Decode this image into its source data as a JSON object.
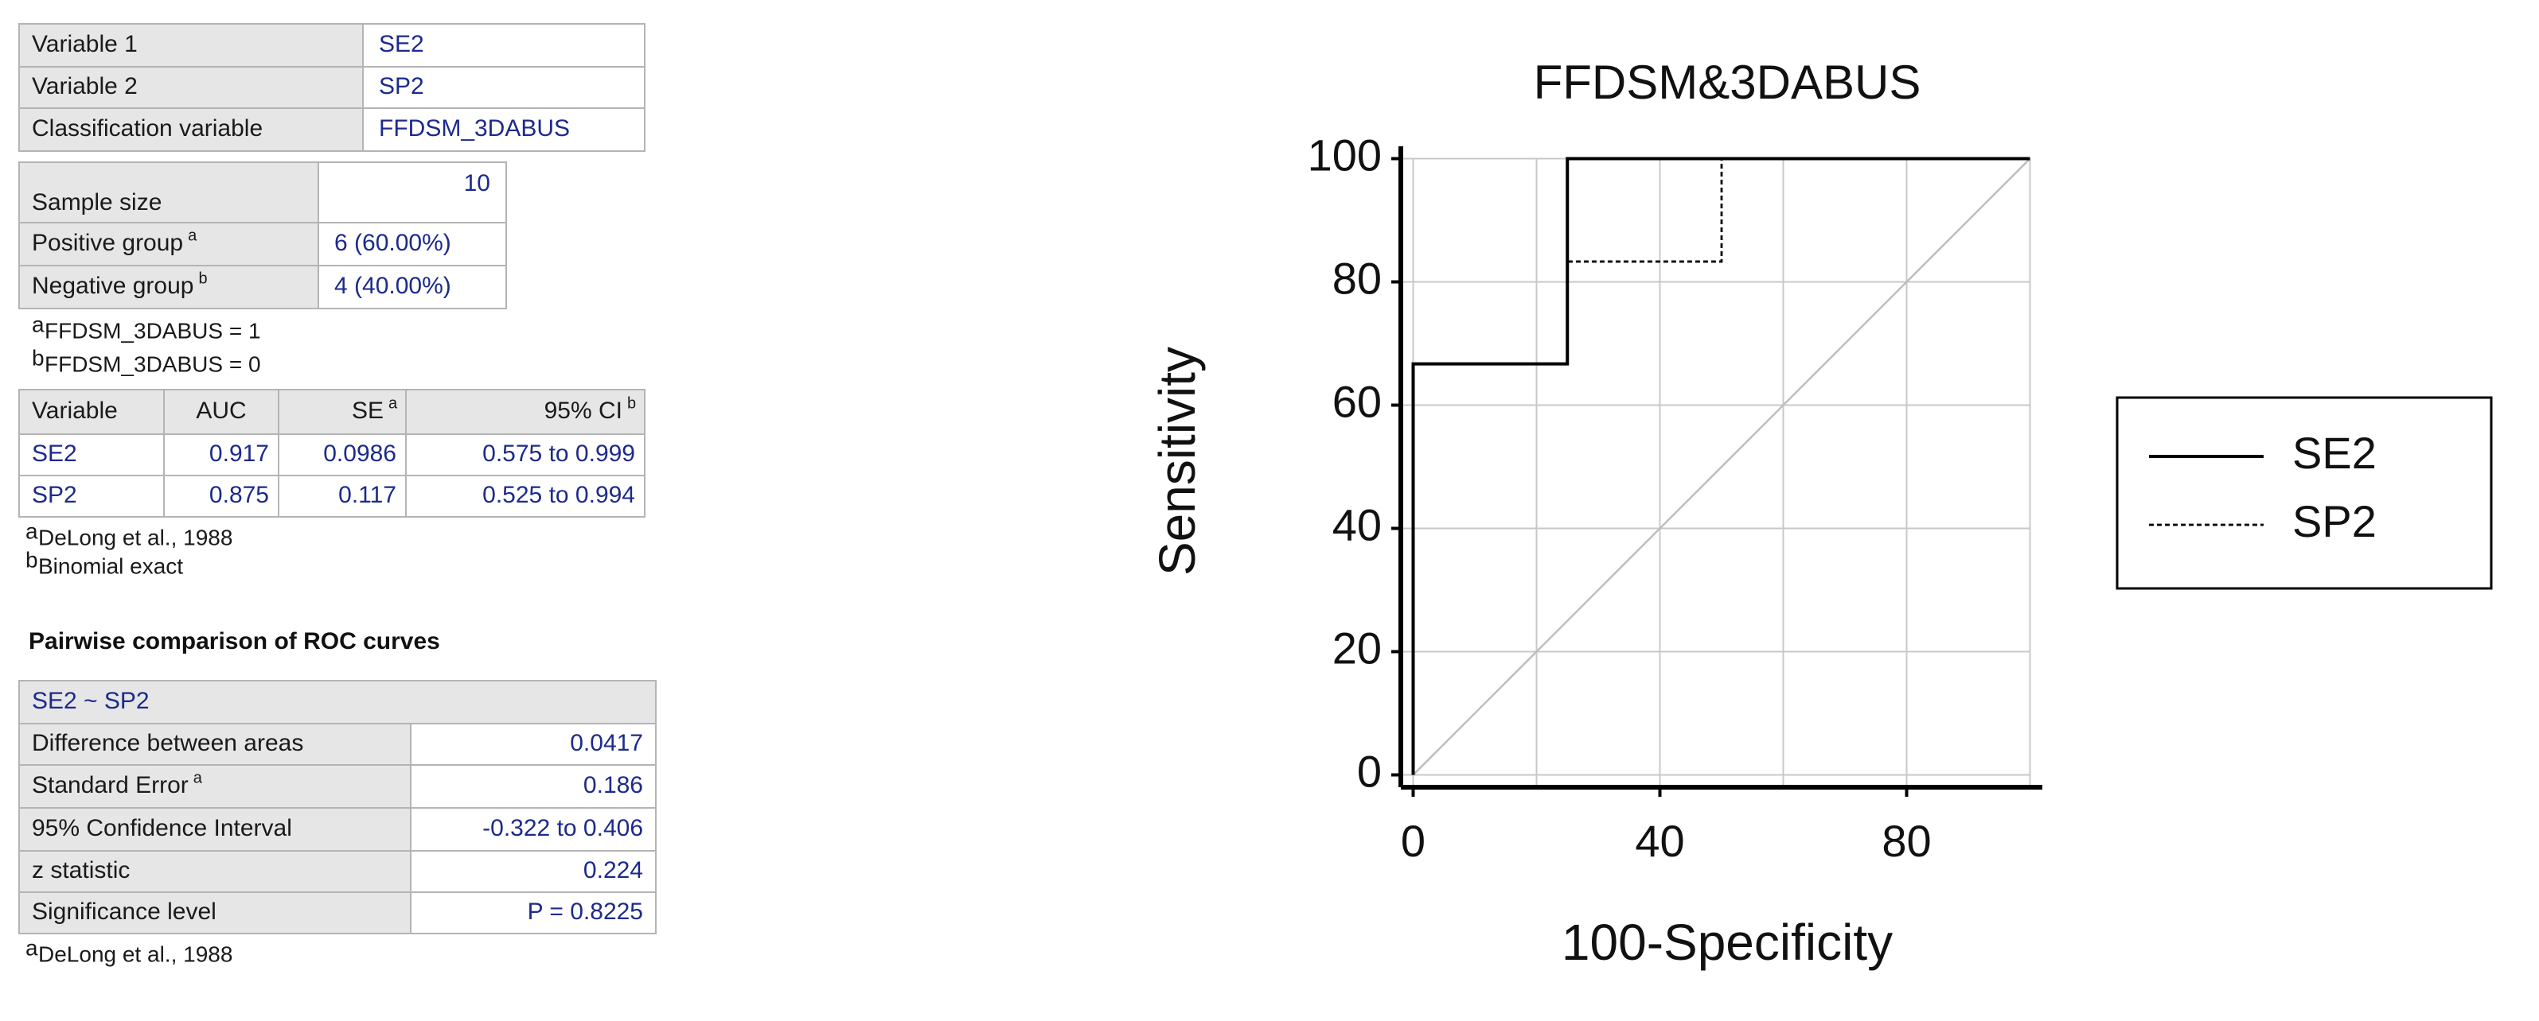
{
  "input_table": {
    "rows": [
      [
        "Variable 1",
        "SE2"
      ],
      [
        "Variable 2",
        "SP2"
      ],
      [
        "Classification variable",
        "FFDSM_3DABUS"
      ]
    ]
  },
  "sample_table": {
    "rows": [
      {
        "label": "Sample size",
        "value": "10"
      },
      {
        "label": "Positive group",
        "sup": "a",
        "value": "6 (60.00%)"
      },
      {
        "label": "Negative group",
        "sup": "b",
        "value": "4 (40.00%)"
      }
    ],
    "notes": [
      {
        "sup": "a",
        "text": "FFDSM_3DABUS = 1"
      },
      {
        "sup": "b",
        "text": "FFDSM_3DABUS = 0"
      }
    ]
  },
  "auc_table": {
    "header": [
      {
        "text": "Variable"
      },
      {
        "text": "AUC"
      },
      {
        "text": "SE",
        "sup": "a"
      },
      {
        "text": "95% CI",
        "sup": "b"
      }
    ],
    "rows": [
      [
        "SE2",
        "0.917",
        "0.0986",
        "0.575 to 0.999"
      ],
      [
        "SP2",
        "0.875",
        "0.117",
        "0.525 to 0.994"
      ]
    ],
    "notes": [
      {
        "sup": "a",
        "text": "DeLong et al., 1988"
      },
      {
        "sup": "b",
        "text": "Binomial exact"
      }
    ]
  },
  "comparison": {
    "heading": "Pairwise comparison of ROC curves",
    "header": "SE2 ~ SP2",
    "rows": [
      {
        "label": "Difference between areas",
        "value": "0.0417"
      },
      {
        "label": "Standard Error",
        "sup": "a",
        "value": "0.186"
      },
      {
        "label": "95% Confidence Interval",
        "value": "-0.322 to 0.406"
      },
      {
        "label": "z statistic",
        "value": "0.224"
      },
      {
        "label": "Significance level",
        "value": "P = 0.8225"
      }
    ],
    "notes": [
      {
        "sup": "a",
        "text": "DeLong et al., 1988"
      }
    ]
  },
  "chart_data": {
    "type": "line",
    "title": "FFDSM&3DABUS",
    "x_label": "100-Specificity",
    "y_label": "Sensitivity",
    "series": [
      {
        "name": "SE2",
        "color": "#000000",
        "dash": "solid",
        "x": [
          0,
          0,
          25,
          25,
          100
        ],
        "values": [
          0,
          66.7,
          66.7,
          100,
          100
        ]
      },
      {
        "name": "SP2",
        "color": "#000000",
        "dash": "dashed",
        "x": [
          0,
          0,
          25,
          25,
          50,
          50,
          100
        ],
        "values": [
          0,
          66.7,
          66.7,
          83.3,
          83.3,
          100,
          100
        ]
      }
    ],
    "xlim": [
      -2,
      102
    ],
    "ylim": [
      -2,
      102
    ],
    "xticks": [
      0,
      40,
      80
    ],
    "xgrid": [
      0,
      20,
      40,
      60,
      80,
      100
    ],
    "yticks": [
      0,
      20,
      40,
      60,
      80,
      100
    ],
    "grid": true,
    "diagonal": true,
    "legend": "right"
  }
}
